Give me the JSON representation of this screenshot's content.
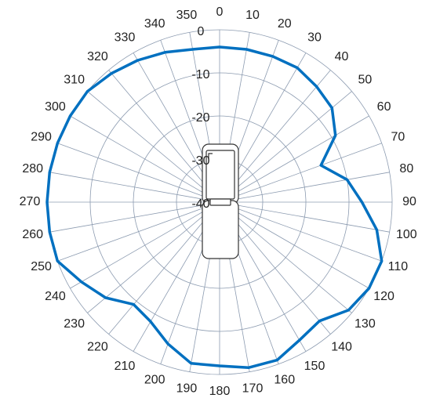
{
  "chart_data": {
    "type": "polar",
    "angles": [
      0,
      10,
      20,
      30,
      40,
      50,
      60,
      70,
      80,
      90,
      100,
      110,
      120,
      130,
      140,
      150,
      160,
      170,
      180,
      190,
      200,
      210,
      220,
      230,
      240,
      250,
      260,
      270,
      280,
      290,
      300,
      310,
      320,
      330,
      340,
      350
    ],
    "values": [
      -4,
      -4,
      -4,
      -4,
      -5,
      -6,
      -9,
      -15,
      -10,
      -7,
      -3,
      0,
      0,
      -1,
      -4,
      -3,
      -1,
      -1,
      -2,
      -2,
      -5,
      -8,
      -9,
      -5.5,
      -3,
      0,
      0,
      0,
      0,
      0,
      0,
      0,
      -1,
      -2,
      -3,
      -4
    ],
    "color": "#0070c0",
    "rlim": [
      -40,
      0
    ],
    "rticks": [
      -40,
      -30,
      -20,
      -10,
      0
    ],
    "grid": true
  }
}
